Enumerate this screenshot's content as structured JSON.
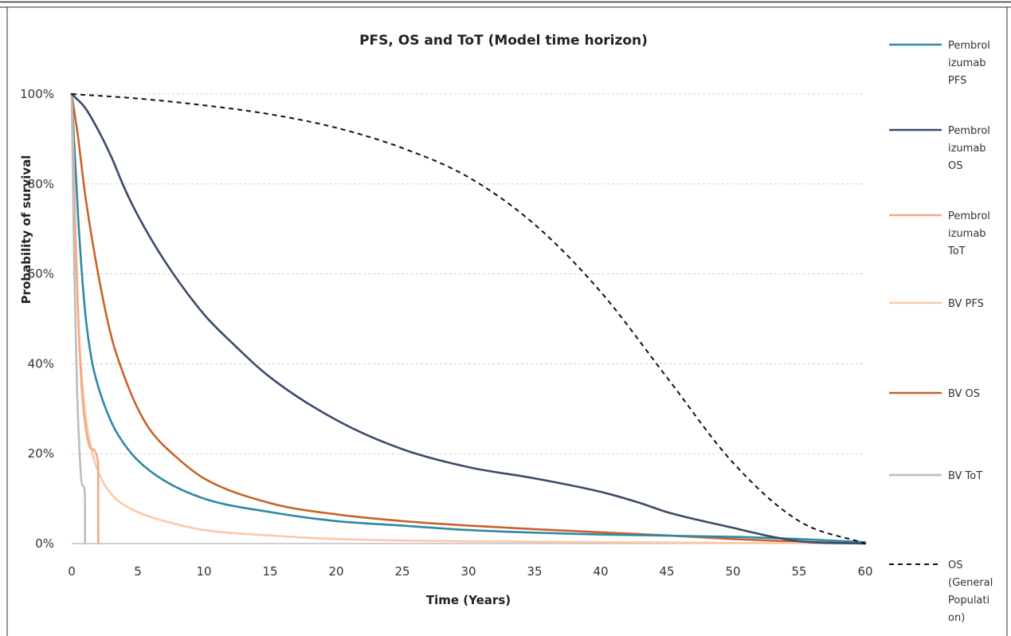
{
  "chart_data": {
    "type": "line",
    "title": "PFS, OS and ToT (Model time horizon)",
    "xlabel": "Time (Years)",
    "ylabel": "Probability of survival",
    "xlim": [
      0,
      60
    ],
    "ylim": [
      0,
      100
    ],
    "x_ticks": [
      "0",
      "5",
      "10",
      "15",
      "20",
      "25",
      "30",
      "35",
      "40",
      "45",
      "50",
      "55",
      "60"
    ],
    "y_ticks": [
      "0%",
      "20%",
      "40%",
      "60%",
      "80%",
      "100%"
    ],
    "grid": "horizontal dashed",
    "legend_position": "right",
    "series": [
      {
        "name": "Pembrolizumab PFS",
        "legend_lines": [
          "Pembrol",
          "izumab",
          "PFS"
        ],
        "color": "#2e89a6",
        "dash": "solid",
        "points": [
          [
            0,
            100
          ],
          [
            0.5,
            72
          ],
          [
            1,
            52
          ],
          [
            1.5,
            41
          ],
          [
            2,
            35
          ],
          [
            3,
            27
          ],
          [
            4,
            22
          ],
          [
            5,
            18.5
          ],
          [
            7,
            14
          ],
          [
            10,
            10
          ],
          [
            15,
            7
          ],
          [
            20,
            5
          ],
          [
            25,
            4
          ],
          [
            30,
            3
          ],
          [
            40,
            2
          ],
          [
            50,
            1.5
          ],
          [
            55,
            1
          ],
          [
            60,
            0.3
          ]
        ]
      },
      {
        "name": "Pembrolizumab OS",
        "legend_lines": [
          "Pembrol",
          "izumab",
          "OS"
        ],
        "color": "#3c4a6b",
        "dash": "solid",
        "points": [
          [
            0,
            100
          ],
          [
            1,
            97
          ],
          [
            2,
            92
          ],
          [
            3,
            86
          ],
          [
            4,
            79
          ],
          [
            5,
            73
          ],
          [
            7,
            63
          ],
          [
            10,
            51
          ],
          [
            12,
            45
          ],
          [
            15,
            37
          ],
          [
            20,
            27.5
          ],
          [
            25,
            21
          ],
          [
            30,
            17
          ],
          [
            35,
            14.5
          ],
          [
            40,
            11.5
          ],
          [
            43,
            9
          ],
          [
            45,
            7
          ],
          [
            50,
            3.5
          ],
          [
            53,
            1.5
          ],
          [
            55,
            0.5
          ],
          [
            60,
            0
          ]
        ]
      },
      {
        "name": "Pembrolizumab ToT",
        "legend_lines": [
          "Pembrol",
          "izumab",
          "ToT"
        ],
        "color": "#f4a984",
        "dash": "solid",
        "points": [
          [
            0,
            100
          ],
          [
            0.25,
            70
          ],
          [
            0.5,
            50
          ],
          [
            0.75,
            35
          ],
          [
            1,
            27
          ],
          [
            1.5,
            21
          ],
          [
            2,
            18
          ],
          [
            2.01,
            0
          ]
        ]
      },
      {
        "name": "BV PFS",
        "legend_lines": [
          "BV PFS"
        ],
        "color": "#fbc9a9",
        "dash": "solid",
        "points": [
          [
            0,
            100
          ],
          [
            0.5,
            50
          ],
          [
            1,
            30
          ],
          [
            1.5,
            21
          ],
          [
            2,
            16
          ],
          [
            3,
            11
          ],
          [
            4,
            8.5
          ],
          [
            5,
            7
          ],
          [
            7,
            5
          ],
          [
            10,
            3
          ],
          [
            15,
            1.8
          ],
          [
            20,
            1
          ],
          [
            30,
            0.5
          ],
          [
            60,
            0
          ]
        ]
      },
      {
        "name": "BV OS",
        "legend_lines": [
          "BV OS"
        ],
        "color": "#c8622a",
        "dash": "solid",
        "points": [
          [
            0,
            100
          ],
          [
            0.5,
            90
          ],
          [
            1,
            78
          ],
          [
            2,
            60
          ],
          [
            3,
            46
          ],
          [
            4,
            37
          ],
          [
            5,
            30
          ],
          [
            6,
            25
          ],
          [
            8,
            19
          ],
          [
            10,
            14.5
          ],
          [
            15,
            9
          ],
          [
            20,
            6.5
          ],
          [
            25,
            5
          ],
          [
            30,
            4
          ],
          [
            35,
            3.2
          ],
          [
            40,
            2.5
          ],
          [
            45,
            1.8
          ],
          [
            50,
            1
          ],
          [
            55,
            0.4
          ],
          [
            60,
            0
          ]
        ]
      },
      {
        "name": "BV ToT",
        "legend_lines": [
          "BV ToT"
        ],
        "color": "#bdbdbd",
        "dash": "solid",
        "points": [
          [
            0,
            100
          ],
          [
            0.2,
            60
          ],
          [
            0.4,
            35
          ],
          [
            0.6,
            20
          ],
          [
            0.8,
            13
          ],
          [
            1,
            11
          ],
          [
            1.01,
            0
          ]
        ]
      },
      {
        "name": "OS (General Population)",
        "legend_lines": [
          "OS",
          "(General",
          "Populati",
          "on)"
        ],
        "color": "#111111",
        "dash": "dashed",
        "points": [
          [
            0,
            100
          ],
          [
            5,
            99
          ],
          [
            10,
            97.5
          ],
          [
            15,
            95.5
          ],
          [
            20,
            92.5
          ],
          [
            25,
            88
          ],
          [
            30,
            81.5
          ],
          [
            35,
            71
          ],
          [
            40,
            56
          ],
          [
            45,
            37
          ],
          [
            50,
            18
          ],
          [
            55,
            5
          ],
          [
            60,
            0
          ]
        ]
      }
    ]
  }
}
